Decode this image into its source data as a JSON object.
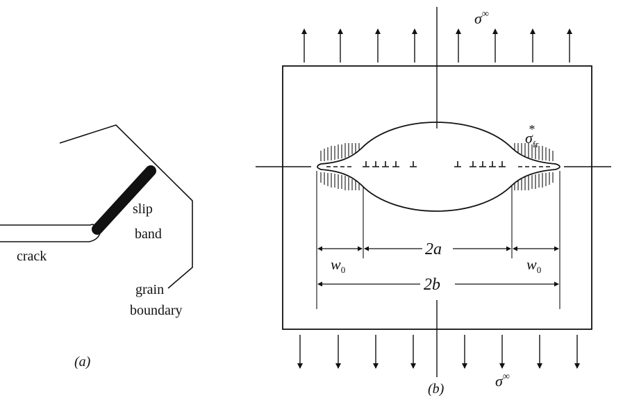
{
  "panel_a": {
    "crack_label": "crack",
    "slip_label_line1": "slip",
    "slip_label_line2": "band",
    "grain_label_line1": "grain",
    "grain_label_line2": "boundary",
    "caption": "(a)"
  },
  "panel_b": {
    "sigma_top": "σ",
    "sigma_top_sup": "∞",
    "sigma_bottom": "σ",
    "sigma_bottom_sup": "∞",
    "sigma_fr": "σ",
    "sigma_fr_sub": "fr",
    "sigma_fr_sup": "*",
    "w0_left": "w",
    "w0_left_sub": "0",
    "w0_right": "w",
    "w0_right_sub": "0",
    "dim_2a": "2a",
    "dim_2b": "2b",
    "caption": "(b)"
  },
  "colors": {
    "ink": "#111111",
    "background": "#ffffff"
  }
}
